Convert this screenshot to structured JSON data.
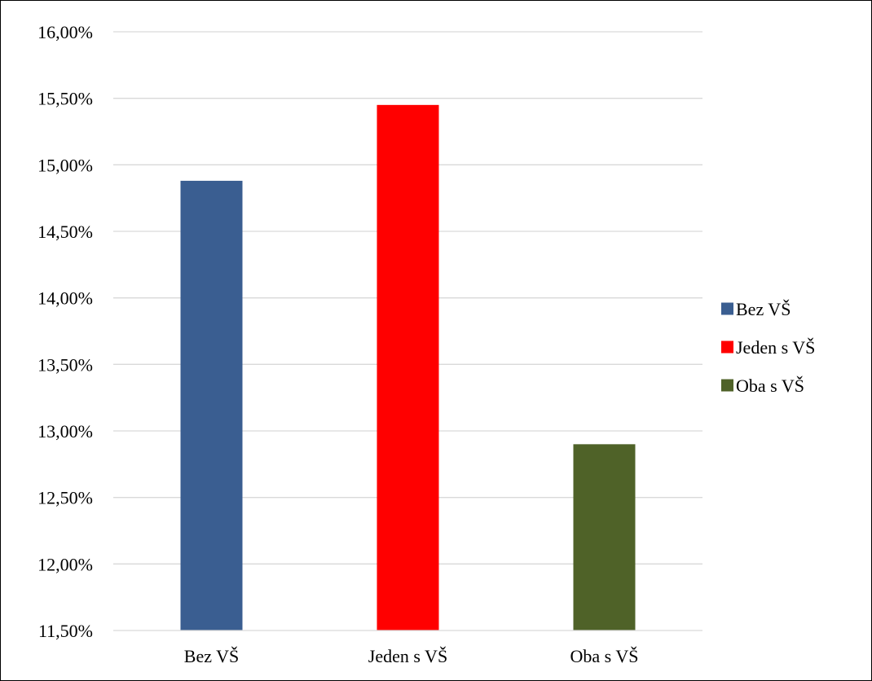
{
  "chart_data": {
    "type": "bar",
    "title": "",
    "xlabel": "",
    "ylabel": "",
    "categories": [
      "Bez VŠ",
      "Jeden s VŠ",
      "Oba s VŠ"
    ],
    "values": [
      0.1488,
      0.1545,
      0.129
    ],
    "colors": [
      "#3A5E91",
      "#FF0000",
      "#4F6228"
    ],
    "ylim": [
      0.115,
      0.16
    ],
    "yticks": [
      0.115,
      0.12,
      0.125,
      0.13,
      0.135,
      0.14,
      0.145,
      0.15,
      0.155,
      0.16
    ],
    "ytick_labels": [
      "11,50%",
      "12,00%",
      "12,50%",
      "13,00%",
      "13,50%",
      "14,00%",
      "14,50%",
      "15,00%",
      "15,50%",
      "16,00%"
    ],
    "grid": true,
    "legend": {
      "position": "right",
      "entries": [
        "Bez VŠ",
        "Jeden s VŠ",
        "Oba s VŠ"
      ]
    }
  }
}
